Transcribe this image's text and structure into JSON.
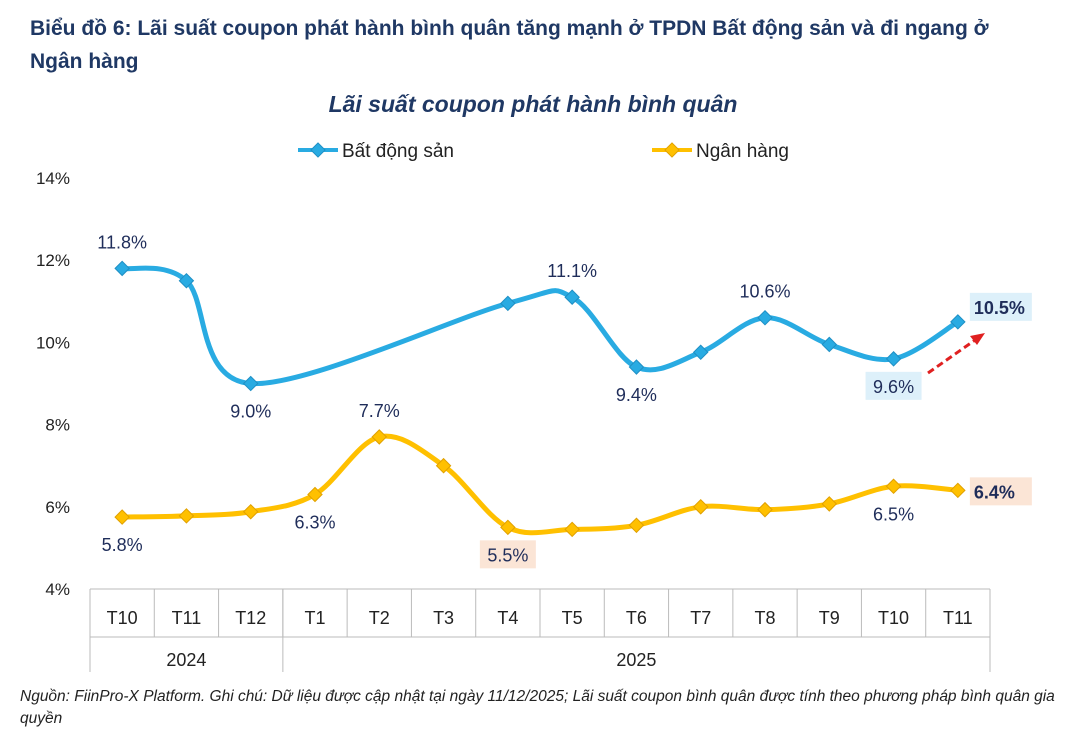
{
  "heading": "Biểu đồ 6: Lãi suất coupon phát hành bình quân tăng mạnh ở TPDN Bất động sản và đi ngang ở Ngân hàng",
  "note": "Nguồn: FiinPro-X Platform. Ghi chú: Dữ liệu được cập nhật tại ngày 11/12/2025; Lãi suất coupon bình quân được tính theo phương pháp bình quân gia quyền",
  "chart_data": {
    "type": "line",
    "title": "Lãi suất coupon phát hành bình quân",
    "categories": [
      "T10",
      "T11",
      "T12",
      "T1",
      "T2",
      "T3",
      "T4",
      "T5",
      "T6",
      "T7",
      "T8",
      "T9",
      "T10",
      "T11"
    ],
    "year_groups": [
      {
        "label": "2024",
        "count": 3
      },
      {
        "label": "2025",
        "count": 11
      }
    ],
    "ylim": [
      4,
      14
    ],
    "yticks": [
      "4%",
      "6%",
      "8%",
      "10%",
      "12%",
      "14%"
    ],
    "legend_placement": "top",
    "grid": false,
    "series": [
      {
        "name": "Bất động sản",
        "color": "#29abe2",
        "values": [
          11.8,
          11.5,
          9.0,
          null,
          null,
          null,
          10.95,
          11.1,
          9.4,
          9.76,
          10.6,
          9.95,
          9.6,
          10.5
        ],
        "labels": [
          {
            "i": 0,
            "text": "11.8%"
          },
          {
            "i": 2,
            "text": "9.0%"
          },
          {
            "i": 7,
            "text": "11.1%"
          },
          {
            "i": 8,
            "text": "9.4%"
          },
          {
            "i": 10,
            "text": "10.6%"
          },
          {
            "i": 12,
            "text": "9.6%"
          },
          {
            "i": 13,
            "text": "10.5%"
          }
        ]
      },
      {
        "name": "Ngân hàng",
        "color": "#ffc000",
        "values": [
          5.75,
          5.78,
          5.88,
          6.3,
          7.7,
          7.0,
          5.5,
          5.45,
          5.55,
          6.0,
          5.93,
          6.07,
          6.5,
          6.4
        ],
        "labels": [
          {
            "i": 0,
            "text": "5.8%"
          },
          {
            "i": 3,
            "text": "6.3%"
          },
          {
            "i": 4,
            "text": "7.7%"
          },
          {
            "i": 6,
            "text": "5.5%"
          },
          {
            "i": 12,
            "text": "6.5%"
          },
          {
            "i": 13,
            "text": "6.4%"
          }
        ]
      }
    ]
  }
}
